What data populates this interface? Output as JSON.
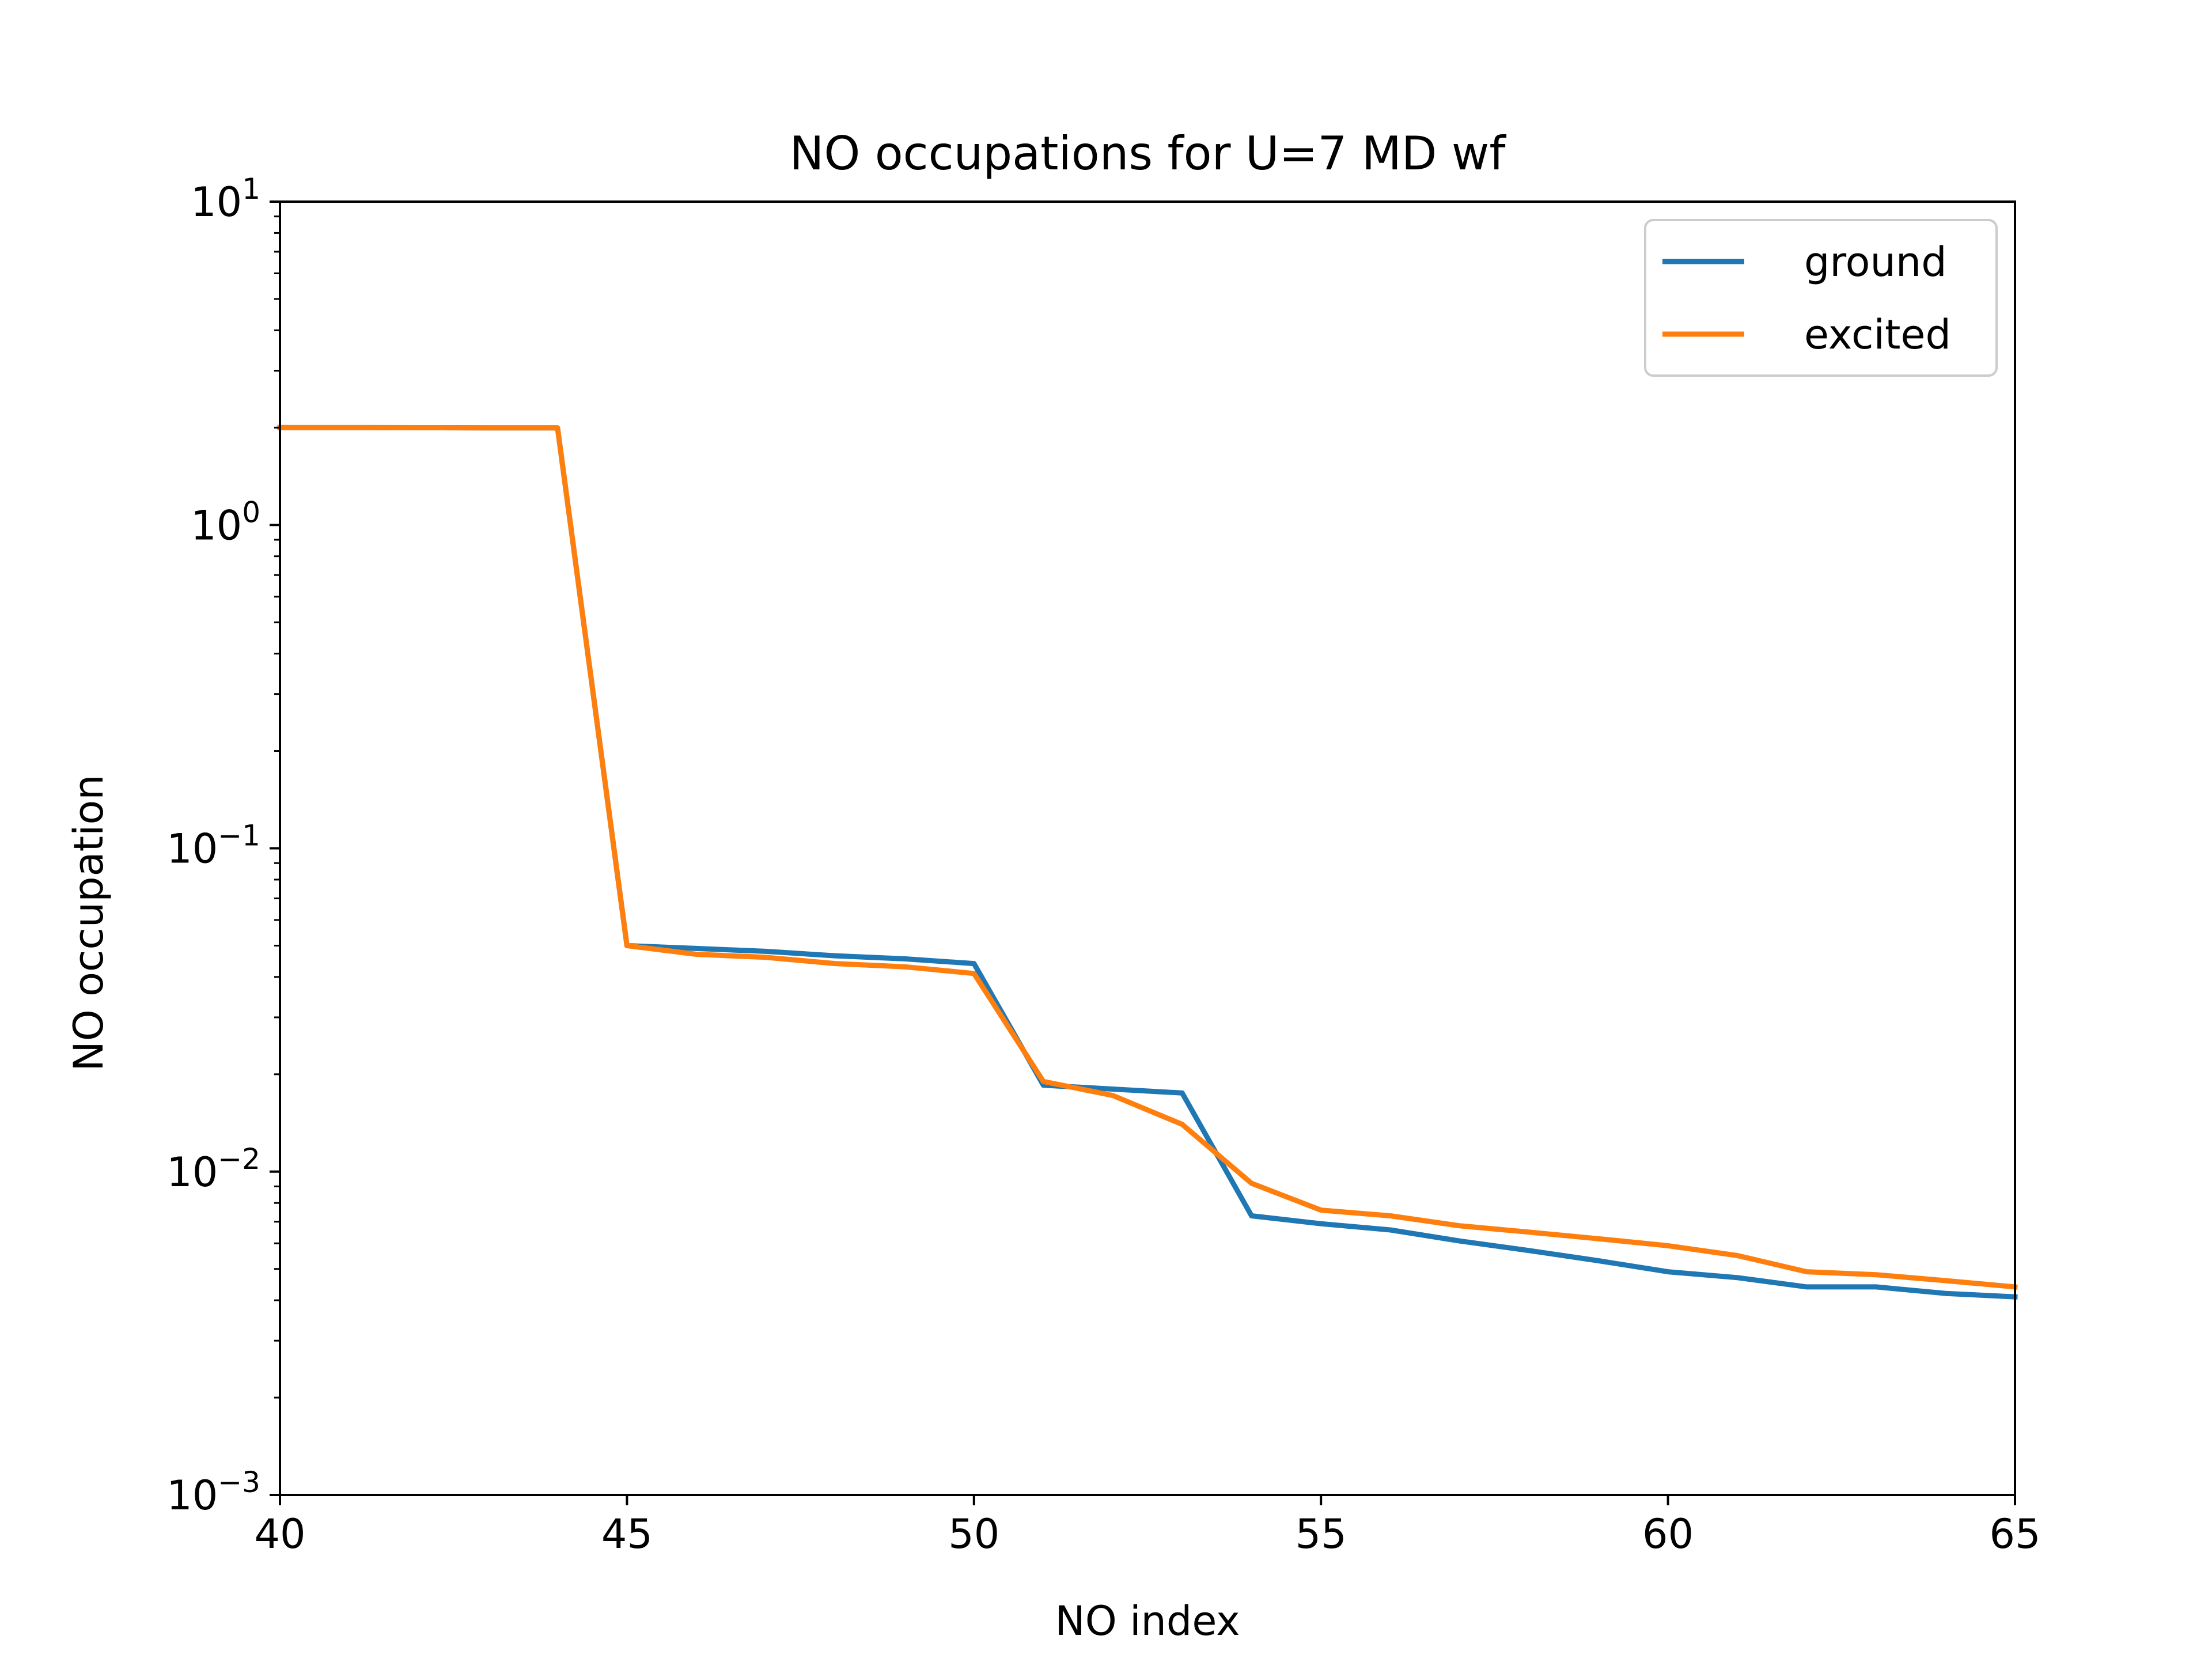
{
  "chart_data": {
    "type": "line",
    "title": "NO occupations for U=7 MD wf",
    "xlabel": "NO index",
    "ylabel": "NO occupation",
    "xlim": [
      40,
      65
    ],
    "ylim": [
      0.001,
      10
    ],
    "yscale": "log",
    "grid": false,
    "legend_position": "top-right",
    "x_ticks": [
      40,
      45,
      50,
      55,
      60,
      65
    ],
    "y_ticks": [
      {
        "value": 0.001,
        "base": "10",
        "exp": "−3"
      },
      {
        "value": 0.01,
        "base": "10",
        "exp": "−2"
      },
      {
        "value": 0.1,
        "base": "10",
        "exp": "−1"
      },
      {
        "value": 1,
        "base": "10",
        "exp": "0"
      },
      {
        "value": 10,
        "base": "10",
        "exp": "1"
      }
    ],
    "x": [
      40,
      41,
      42,
      43,
      44,
      45,
      46,
      47,
      48,
      49,
      50,
      51,
      52,
      53,
      54,
      55,
      56,
      57,
      58,
      59,
      60,
      61,
      62,
      63,
      64,
      65
    ],
    "series": [
      {
        "name": "ground",
        "color": "#1f77b4",
        "values": [
          2.0,
          1.999,
          1.998,
          1.997,
          1.996,
          0.05,
          0.049,
          0.048,
          0.0465,
          0.0455,
          0.044,
          0.0185,
          0.018,
          0.0175,
          0.0073,
          0.0069,
          0.0066,
          0.0061,
          0.0057,
          0.0053,
          0.0049,
          0.0047,
          0.0044,
          0.0044,
          0.0042,
          0.0041
        ]
      },
      {
        "name": "excited",
        "color": "#ff7f0e",
        "values": [
          2.0,
          1.999,
          1.998,
          1.997,
          1.996,
          0.05,
          0.047,
          0.046,
          0.044,
          0.043,
          0.041,
          0.019,
          0.0172,
          0.014,
          0.0092,
          0.0076,
          0.0073,
          0.0068,
          0.0065,
          0.0062,
          0.0059,
          0.0055,
          0.0049,
          0.0048,
          0.0046,
          0.0044
        ]
      }
    ]
  }
}
